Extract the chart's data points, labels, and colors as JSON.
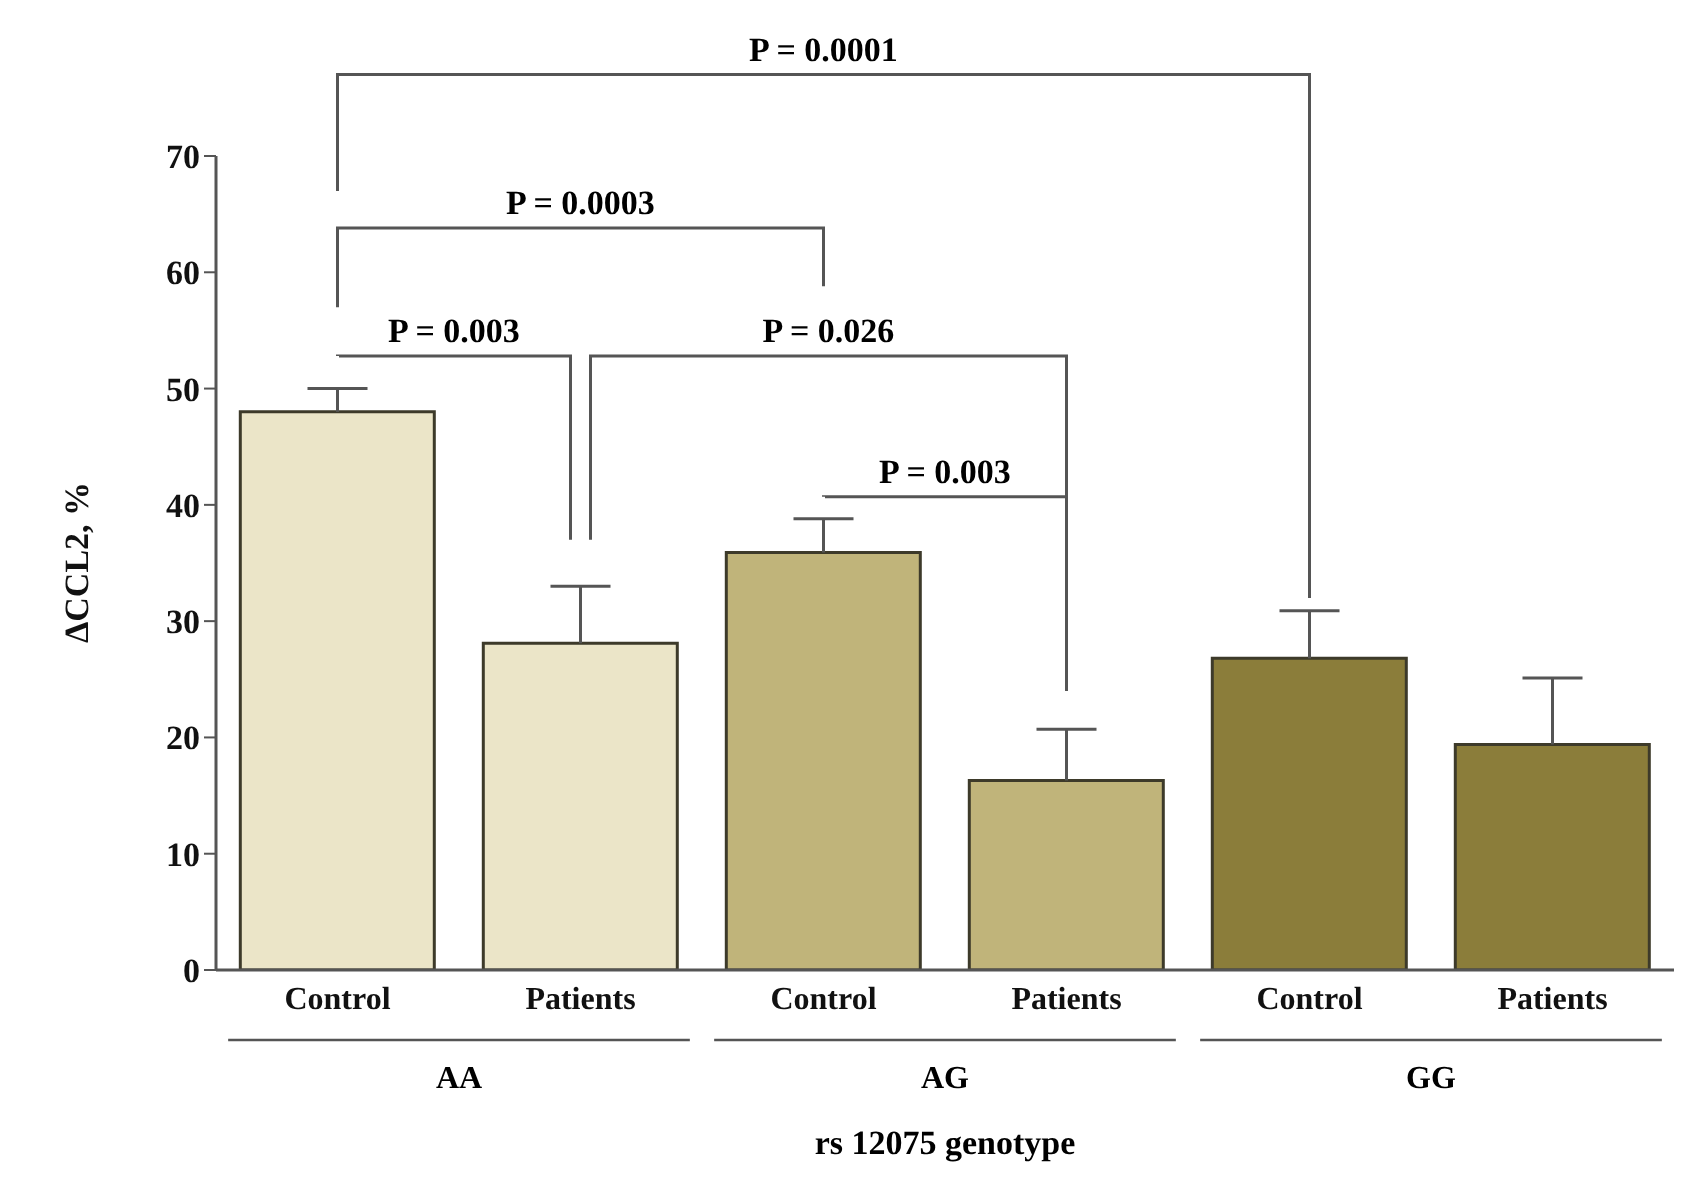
{
  "chart_data": {
    "type": "bar",
    "xlabel": "rs 12075 genotype",
    "ylabel": "ΔCCL2, %",
    "categories": [
      "Control",
      "Patients",
      "Control",
      "Patients",
      "Control",
      "Patients"
    ],
    "values": [
      48,
      28.1,
      35.9,
      16.3,
      26.8,
      19.4
    ],
    "colors": [
      "#ebe5c8",
      "#ebe5c8",
      "#c0b47a",
      "#c0b47a",
      "#8b7d3a",
      "#8b7d3a"
    ],
    "errors": [
      [
        48,
        50
      ],
      [
        28.1,
        33
      ],
      [
        35.9,
        38.8
      ],
      [
        16.3,
        20.7
      ],
      [
        26.8,
        30.9
      ],
      [
        19.4,
        25.1
      ]
    ],
    "ylim": [
      0,
      70
    ],
    "yticks": [
      0,
      10,
      20,
      30,
      40,
      50,
      60,
      70
    ],
    "grid": false,
    "legend": false,
    "annotations": [
      "P = 0.0001",
      "P = 0.0003",
      "P = 0.003",
      "P = 0.026",
      "P = 0.003",
      "AA",
      "AG",
      "GG"
    ]
  }
}
